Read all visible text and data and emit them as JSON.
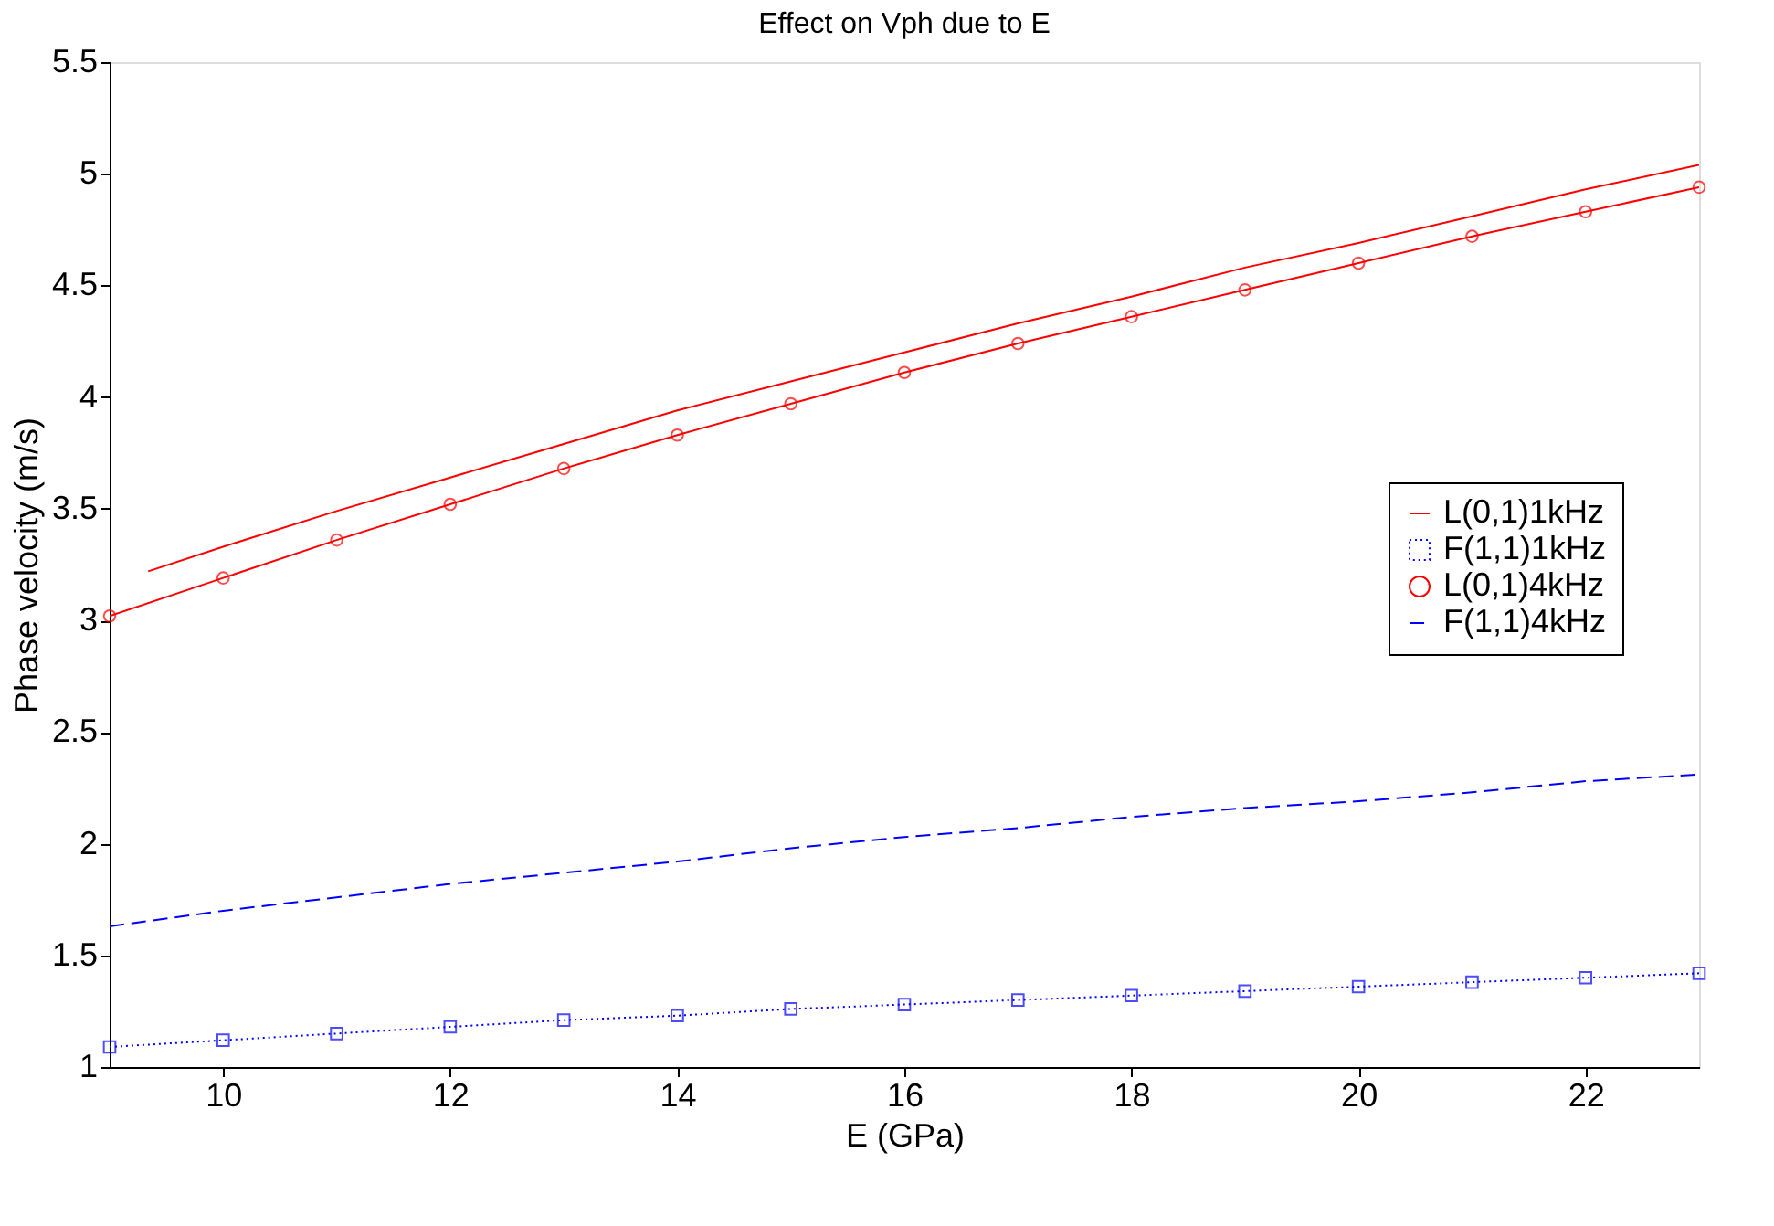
{
  "chart_data": {
    "type": "line",
    "title": "Effect on Vph due to E",
    "xlabel": "E (GPa)",
    "ylabel": "Phase velocity (m/s)",
    "xlim": [
      9,
      23
    ],
    "xticks": [
      10,
      12,
      14,
      16,
      18,
      20,
      22
    ],
    "ylim": [
      1,
      5.5
    ],
    "yticks": [
      1,
      1.5,
      2,
      2.5,
      3,
      3.5,
      4,
      4.5,
      5,
      5.5
    ],
    "legend": "right",
    "series": [
      {
        "name": "L(0,1)1kHz",
        "color": "#ff0000",
        "marker": "none",
        "line_style": "solid",
        "x": [
          9.34,
          10,
          11,
          12,
          13,
          14,
          15,
          16,
          17,
          18,
          19,
          20,
          21,
          22,
          23
        ],
        "values": [
          3.22,
          3.33,
          3.49,
          3.64,
          3.79,
          3.94,
          4.07,
          4.2,
          4.33,
          4.45,
          4.58,
          4.69,
          4.81,
          4.93,
          5.04
        ]
      },
      {
        "name": "F(1,1)1kHz",
        "color": "#0000ff",
        "marker": "square",
        "line_style": "dotted",
        "x": [
          9,
          10,
          11,
          12,
          13,
          14,
          15,
          16,
          17,
          18,
          19,
          20,
          21,
          22,
          23
        ],
        "values": [
          1.09,
          1.12,
          1.15,
          1.18,
          1.21,
          1.23,
          1.26,
          1.28,
          1.3,
          1.32,
          1.34,
          1.36,
          1.38,
          1.4,
          1.42
        ]
      },
      {
        "name": "L(0,1)4kHz",
        "color": "#ff0000",
        "marker": "circle",
        "line_style": "solid",
        "x": [
          9,
          10,
          11,
          12,
          13,
          14,
          15,
          16,
          17,
          18,
          19,
          20,
          21,
          22,
          23
        ],
        "values": [
          3.02,
          3.19,
          3.36,
          3.52,
          3.68,
          3.83,
          3.97,
          4.11,
          4.24,
          4.36,
          4.48,
          4.6,
          4.72,
          4.83,
          4.94
        ]
      },
      {
        "name": "F(1,1)4kHz",
        "color": "#0000ff",
        "marker": "none",
        "line_style": "dashed",
        "x": [
          9,
          10,
          11,
          12,
          13,
          14,
          15,
          16,
          17,
          18,
          19,
          20,
          21,
          22,
          23
        ],
        "values": [
          1.63,
          1.7,
          1.76,
          1.82,
          1.87,
          1.92,
          1.98,
          2.03,
          2.07,
          2.12,
          2.16,
          2.19,
          2.23,
          2.28,
          2.31
        ]
      }
    ]
  }
}
